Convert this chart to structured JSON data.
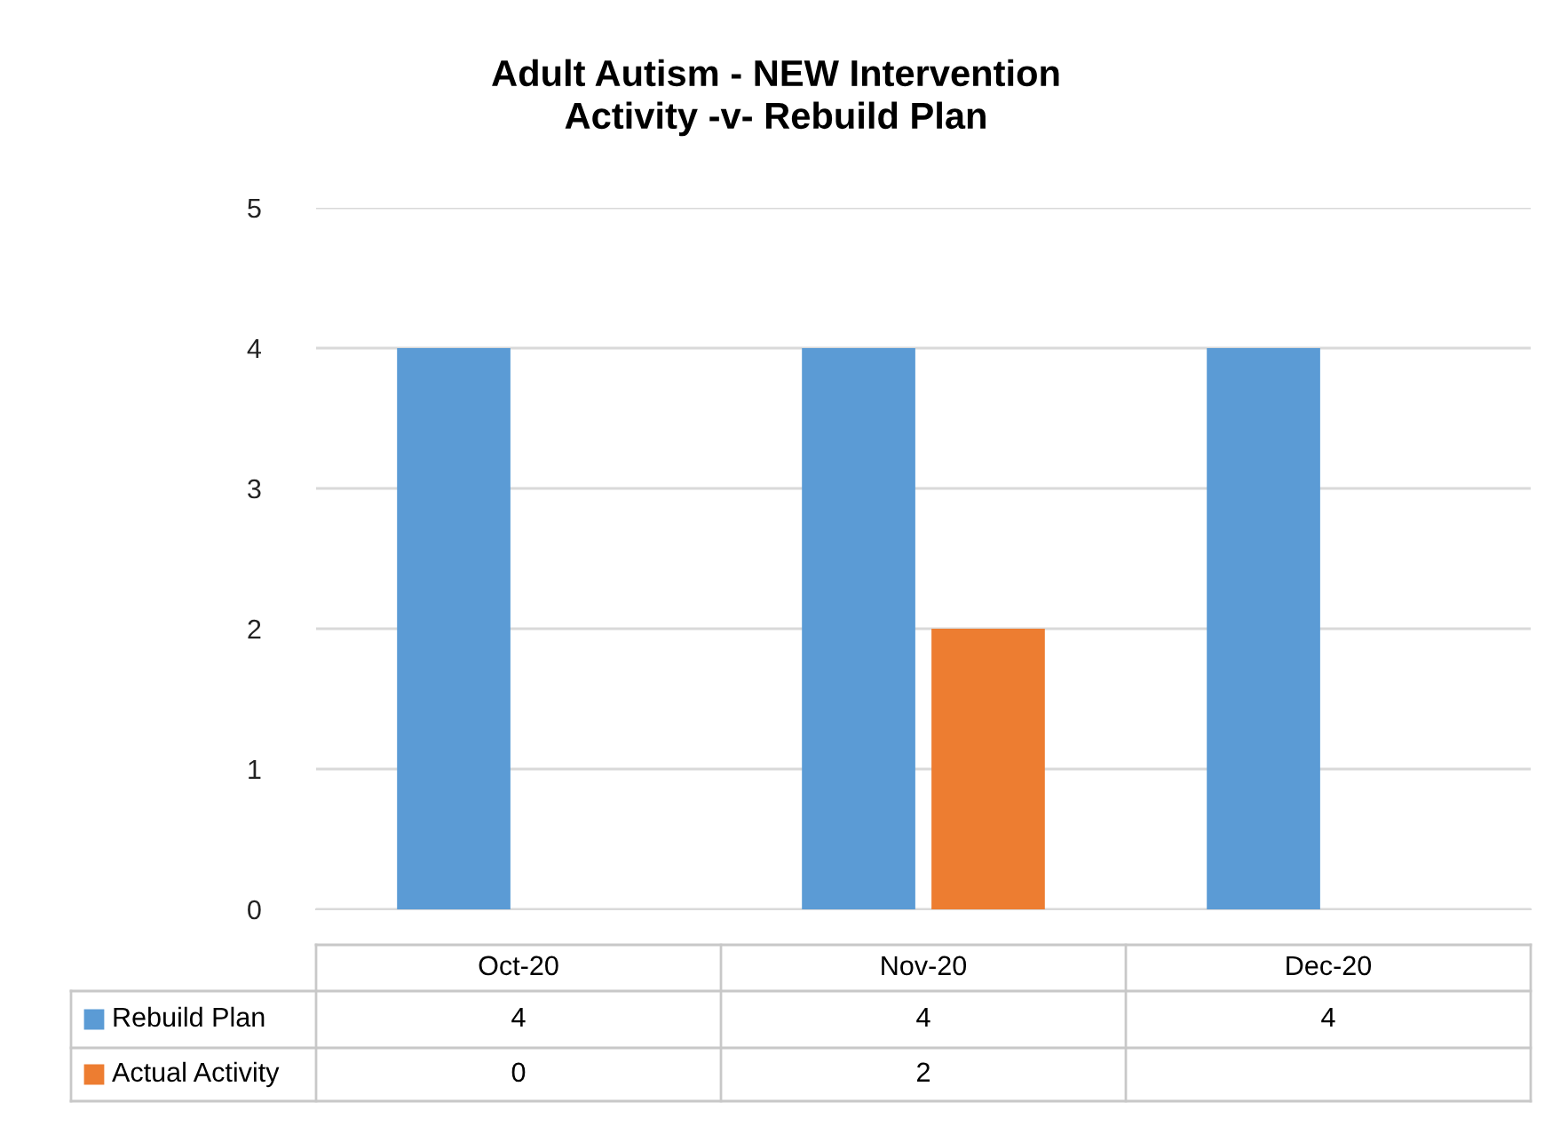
{
  "chart_data": {
    "type": "bar",
    "title": "Adult Autism - NEW Intervention\nActivity -v- Rebuild Plan",
    "categories": [
      "Oct-20",
      "Nov-20",
      "Dec-20"
    ],
    "series": [
      {
        "name": "Rebuild Plan",
        "color": "#5b9bd5",
        "values": [
          4,
          4,
          4
        ]
      },
      {
        "name": "Actual Activity",
        "color": "#ed7d31",
        "values": [
          0,
          2,
          null
        ]
      }
    ],
    "ylim": [
      0,
      5
    ],
    "yticks": [
      0,
      1,
      2,
      3,
      4,
      5
    ],
    "grid": "y",
    "legend": "bottom",
    "data_labels": true
  }
}
